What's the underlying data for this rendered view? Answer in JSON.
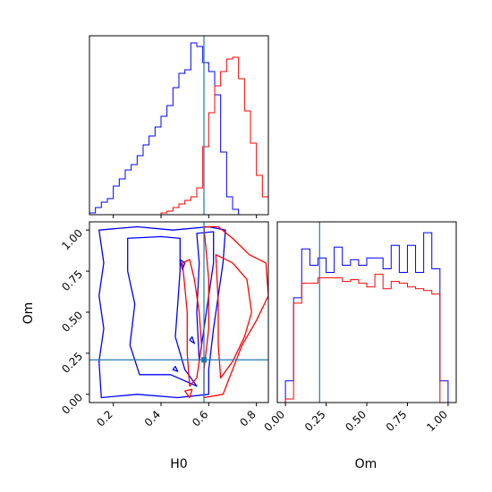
{
  "chart_data": {
    "type": "corner",
    "parameters": [
      "H0",
      "Om"
    ],
    "truth": {
      "H0": 0.58,
      "Om": 0.21
    },
    "colors": {
      "blue": "#0000ff",
      "red": "#ff0000",
      "truth": "#1f77b4"
    },
    "panels": [
      {
        "id": "hist_H0",
        "type": "histogram",
        "xlim": [
          0.1,
          0.85
        ],
        "bin_edges": [
          0.1,
          0.125,
          0.15,
          0.175,
          0.2,
          0.225,
          0.25,
          0.275,
          0.3,
          0.325,
          0.35,
          0.375,
          0.4,
          0.425,
          0.45,
          0.475,
          0.5,
          0.525,
          0.55,
          0.575,
          0.6,
          0.625,
          0.65,
          0.675,
          0.7,
          0.725,
          0.75,
          0.775,
          0.8,
          0.825,
          0.85
        ],
        "series": [
          {
            "color": "blue",
            "values": [
              0.01,
              0.04,
              0.07,
              0.09,
              0.16,
              0.2,
              0.25,
              0.28,
              0.33,
              0.39,
              0.44,
              0.49,
              0.55,
              0.61,
              0.71,
              0.79,
              0.81,
              0.96,
              0.94,
              0.85,
              0.8,
              0.67,
              0.35,
              0.1,
              0.03,
              0.0,
              0.0,
              0.0,
              0.0,
              0.0
            ]
          },
          {
            "color": "red",
            "values": [
              0.0,
              0.0,
              0.0,
              0.0,
              0.0,
              0.0,
              0.0,
              0.0,
              0.0,
              0.0,
              0.0,
              0.0,
              0.01,
              0.02,
              0.04,
              0.06,
              0.08,
              0.1,
              0.15,
              0.38,
              0.57,
              0.72,
              0.8,
              0.87,
              0.88,
              0.76,
              0.58,
              0.4,
              0.22,
              0.1
            ]
          }
        ]
      },
      {
        "id": "hist_Om",
        "type": "histogram",
        "xlim": [
          -0.05,
          1.05
        ],
        "bin_edges": [
          0.0,
          0.05,
          0.1,
          0.15,
          0.2,
          0.25,
          0.3,
          0.35,
          0.4,
          0.45,
          0.5,
          0.55,
          0.6,
          0.65,
          0.7,
          0.75,
          0.8,
          0.85,
          0.9,
          0.95,
          1.0
        ],
        "series": [
          {
            "color": "blue",
            "values": [
              0.12,
              0.58,
              0.85,
              0.76,
              0.8,
              0.72,
              0.86,
              0.76,
              0.79,
              0.76,
              0.8,
              0.8,
              0.74,
              0.87,
              0.72,
              0.87,
              0.72,
              0.94,
              0.74,
              0.12
            ]
          },
          {
            "color": "red",
            "values": [
              0.02,
              0.55,
              0.66,
              0.66,
              0.69,
              0.69,
              0.69,
              0.67,
              0.68,
              0.66,
              0.64,
              0.71,
              0.63,
              0.67,
              0.66,
              0.64,
              0.63,
              0.62,
              0.6,
              0.0
            ]
          }
        ]
      },
      {
        "id": "contour_H0_Om",
        "type": "contour",
        "xlim": [
          0.1,
          0.85
        ],
        "ylim": [
          -0.05,
          1.05
        ],
        "contours": [
          {
            "color": "blue",
            "points": [
              [
                0.14,
                1.0
              ],
              [
                0.3,
                1.02
              ],
              [
                0.45,
                1.0
              ],
              [
                0.6,
                1.02
              ],
              [
                0.67,
                1.0
              ],
              [
                0.66,
                0.8
              ],
              [
                0.64,
                0.6
              ],
              [
                0.62,
                0.4
              ],
              [
                0.6,
                0.15
              ],
              [
                0.6,
                0.0
              ],
              [
                0.47,
                -0.02
              ],
              [
                0.3,
                0.0
              ],
              [
                0.15,
                -0.02
              ],
              [
                0.14,
                0.2
              ],
              [
                0.16,
                0.4
              ],
              [
                0.14,
                0.6
              ],
              [
                0.16,
                0.8
              ],
              [
                0.14,
                1.0
              ]
            ]
          },
          {
            "color": "blue",
            "points": [
              [
                0.26,
                0.95
              ],
              [
                0.4,
                0.96
              ],
              [
                0.48,
                0.95
              ],
              [
                0.48,
                0.75
              ],
              [
                0.47,
                0.55
              ],
              [
                0.46,
                0.35
              ],
              [
                0.5,
                0.15
              ],
              [
                0.55,
                0.05
              ],
              [
                0.44,
                0.12
              ],
              [
                0.31,
                0.12
              ],
              [
                0.27,
                0.3
              ],
              [
                0.29,
                0.55
              ],
              [
                0.26,
                0.75
              ],
              [
                0.26,
                0.95
              ]
            ]
          },
          {
            "color": "blue",
            "points": [
              [
                0.55,
                0.98
              ],
              [
                0.62,
                0.99
              ],
              [
                0.62,
                0.8
              ],
              [
                0.6,
                0.6
              ],
              [
                0.58,
                0.4
              ],
              [
                0.56,
                0.2
              ],
              [
                0.55,
                0.5
              ],
              [
                0.56,
                0.8
              ],
              [
                0.55,
                0.98
              ]
            ]
          },
          {
            "color": "blue",
            "points": [
              [
                0.48,
                0.82
              ],
              [
                0.5,
                0.8
              ],
              [
                0.49,
                0.76
              ],
              [
                0.48,
                0.82
              ]
            ]
          },
          {
            "color": "blue",
            "points": [
              [
                0.52,
                0.33
              ],
              [
                0.54,
                0.31
              ],
              [
                0.53,
                0.35
              ],
              [
                0.52,
                0.33
              ]
            ]
          },
          {
            "color": "blue",
            "points": [
              [
                0.45,
                0.15
              ],
              [
                0.47,
                0.14
              ],
              [
                0.46,
                0.17
              ],
              [
                0.45,
                0.15
              ]
            ]
          },
          {
            "color": "red",
            "points": [
              [
                0.58,
                1.02
              ],
              [
                0.64,
                1.02
              ],
              [
                0.7,
                0.95
              ],
              [
                0.77,
                0.85
              ],
              [
                0.84,
                0.8
              ],
              [
                0.85,
                0.6
              ],
              [
                0.8,
                0.45
              ],
              [
                0.74,
                0.3
              ],
              [
                0.7,
                0.15
              ],
              [
                0.66,
                0.0
              ],
              [
                0.58,
                -0.02
              ],
              [
                0.58,
                0.15
              ],
              [
                0.6,
                0.4
              ],
              [
                0.6,
                0.7
              ],
              [
                0.58,
                1.02
              ]
            ]
          },
          {
            "color": "red",
            "points": [
              [
                0.63,
                0.85
              ],
              [
                0.7,
                0.8
              ],
              [
                0.76,
                0.7
              ],
              [
                0.78,
                0.5
              ],
              [
                0.75,
                0.35
              ],
              [
                0.7,
                0.2
              ],
              [
                0.65,
                0.1
              ],
              [
                0.64,
                0.3
              ],
              [
                0.64,
                0.55
              ],
              [
                0.63,
                0.85
              ]
            ]
          },
          {
            "color": "red",
            "points": [
              [
                0.49,
                0.8
              ],
              [
                0.52,
                0.82
              ],
              [
                0.54,
                0.7
              ],
              [
                0.56,
                0.5
              ],
              [
                0.57,
                0.3
              ],
              [
                0.55,
                0.1
              ],
              [
                0.52,
                0.05
              ],
              [
                0.51,
                0.25
              ],
              [
                0.51,
                0.5
              ],
              [
                0.49,
                0.8
              ]
            ]
          },
          {
            "color": "red",
            "points": [
              [
                0.5,
                0.02
              ],
              [
                0.53,
                0.03
              ],
              [
                0.52,
                -0.02
              ],
              [
                0.5,
                0.02
              ]
            ]
          }
        ]
      }
    ],
    "axes": {
      "H0": {
        "label": "H0",
        "ticks": [
          0.2,
          0.4,
          0.6,
          0.8
        ],
        "tick_labels": [
          "0.2",
          "0.4",
          "0.6",
          "0.8"
        ]
      },
      "Om": {
        "label": "Om",
        "ticks": [
          0.0,
          0.25,
          0.5,
          0.75,
          1.0
        ],
        "tick_labels": [
          "0.00",
          "0.25",
          "0.50",
          "0.75",
          "1.00"
        ]
      }
    }
  }
}
